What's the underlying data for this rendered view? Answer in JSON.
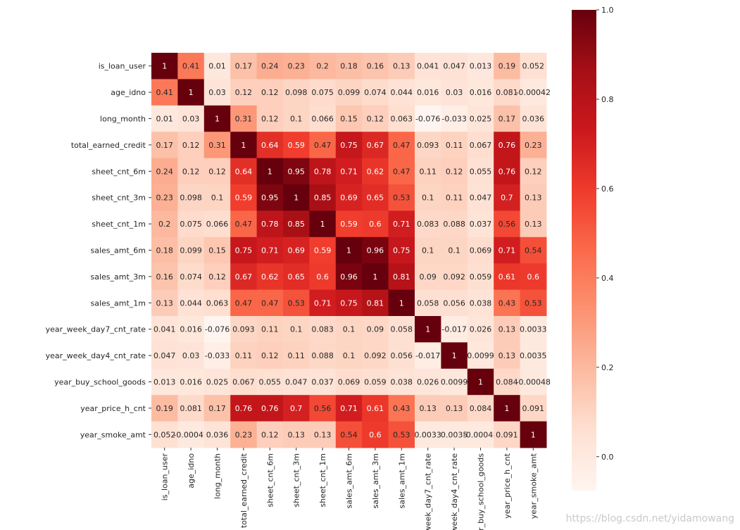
{
  "chart_data": {
    "type": "heatmap",
    "labels": [
      "is_loan_user",
      "age_idno",
      "long_month",
      "total_earned_credit",
      "sheet_cnt_6m",
      "sheet_cnt_3m",
      "sheet_cnt_1m",
      "sales_amt_6m",
      "sales_amt_3m",
      "sales_amt_1m",
      "year_week_day7_cnt_rate",
      "year_week_day4_cnt_rate",
      "year_buy_school_goods",
      "year_price_h_cnt",
      "year_smoke_amt"
    ],
    "cells": [
      [
        "1",
        "0.41",
        "0.01",
        "0.17",
        "0.24",
        "0.23",
        "0.2",
        "0.18",
        "0.16",
        "0.13",
        "0.041",
        "0.047",
        "0.013",
        "0.19",
        "0.052"
      ],
      [
        "0.41",
        "1",
        "0.03",
        "0.12",
        "0.12",
        "0.098",
        "0.075",
        "0.099",
        "0.074",
        "0.044",
        "0.016",
        "0.03",
        "0.016",
        "0.081",
        "-0.00042"
      ],
      [
        "0.01",
        "0.03",
        "1",
        "0.31",
        "0.12",
        "0.1",
        "0.066",
        "0.15",
        "0.12",
        "0.063",
        "-0.076",
        "-0.033",
        "0.025",
        "0.17",
        "0.036"
      ],
      [
        "0.17",
        "0.12",
        "0.31",
        "1",
        "0.64",
        "0.59",
        "0.47",
        "0.75",
        "0.67",
        "0.47",
        "0.093",
        "0.11",
        "0.067",
        "0.76",
        "0.23"
      ],
      [
        "0.24",
        "0.12",
        "0.12",
        "0.64",
        "1",
        "0.95",
        "0.78",
        "0.71",
        "0.62",
        "0.47",
        "0.11",
        "0.12",
        "0.055",
        "0.76",
        "0.12"
      ],
      [
        "0.23",
        "0.098",
        "0.1",
        "0.59",
        "0.95",
        "1",
        "0.85",
        "0.69",
        "0.65",
        "0.53",
        "0.1",
        "0.11",
        "0.047",
        "0.7",
        "0.13"
      ],
      [
        "0.2",
        "0.075",
        "0.066",
        "0.47",
        "0.78",
        "0.85",
        "1",
        "0.59",
        "0.6",
        "0.71",
        "0.083",
        "0.088",
        "0.037",
        "0.56",
        "0.13"
      ],
      [
        "0.18",
        "0.099",
        "0.15",
        "0.75",
        "0.71",
        "0.69",
        "0.59",
        "1",
        "0.96",
        "0.75",
        "0.1",
        "0.1",
        "0.069",
        "0.71",
        "0.54"
      ],
      [
        "0.16",
        "0.074",
        "0.12",
        "0.67",
        "0.62",
        "0.65",
        "0.6",
        "0.96",
        "1",
        "0.81",
        "0.09",
        "0.092",
        "0.059",
        "0.61",
        "0.6"
      ],
      [
        "0.13",
        "0.044",
        "0.063",
        "0.47",
        "0.47",
        "0.53",
        "0.71",
        "0.75",
        "0.81",
        "1",
        "0.058",
        "0.056",
        "0.038",
        "0.43",
        "0.53"
      ],
      [
        "0.041",
        "0.016",
        "-0.076",
        "0.093",
        "0.11",
        "0.1",
        "0.083",
        "0.1",
        "0.09",
        "0.058",
        "1",
        "-0.017",
        "0.026",
        "0.13",
        "0.0033"
      ],
      [
        "0.047",
        "0.03",
        "-0.033",
        "0.11",
        "0.12",
        "0.11",
        "0.088",
        "0.1",
        "0.092",
        "0.056",
        "-0.017",
        "1",
        "0.0099",
        "0.13",
        "0.0035"
      ],
      [
        "0.013",
        "0.016",
        "0.025",
        "0.067",
        "0.055",
        "0.047",
        "0.037",
        "0.069",
        "0.059",
        "0.038",
        "0.026",
        "0.0099",
        "1",
        "0.084",
        "-0.00048"
      ],
      [
        "0.19",
        "0.081",
        "0.17",
        "0.76",
        "0.76",
        "0.7",
        "0.56",
        "0.71",
        "0.61",
        "0.43",
        "0.13",
        "0.13",
        "0.084",
        "1",
        "0.091"
      ],
      [
        "0.052",
        "-0.00042",
        "0.036",
        "0.23",
        "0.12",
        "0.13",
        "0.13",
        "0.54",
        "0.6",
        "0.53",
        "0.0033",
        "0.0035",
        "-0.00048",
        "0.091",
        "1"
      ]
    ],
    "colorbar": {
      "min": -0.076,
      "max": 1.0,
      "ticks": [
        "1.0",
        "0.8",
        "0.6",
        "0.4",
        "0.2",
        "0.0"
      ],
      "colormap": "Reds"
    },
    "colors": {
      "low": "#fff5f0",
      "high": "#67000d",
      "light_text": "#ffffff",
      "dark_text": "#262626"
    }
  },
  "watermark": "https://blog.csdn.net/yidamowang"
}
